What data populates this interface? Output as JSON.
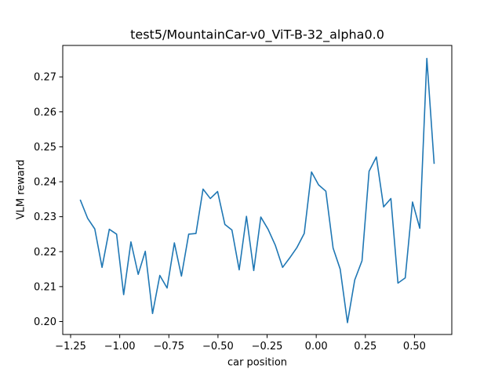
{
  "chart_data": {
    "type": "line",
    "title": "test5/MountainCar-v0_ViT-B-32_alpha0.0",
    "xlabel": "car position",
    "ylabel": "VLM reward",
    "xlim": [
      -1.29,
      0.69
    ],
    "ylim": [
      0.1963,
      0.279
    ],
    "xticks": [
      -1.25,
      -1.0,
      -0.75,
      -0.5,
      -0.25,
      0.0,
      0.25,
      0.5
    ],
    "xtick_labels": [
      "−1.25",
      "−1.00",
      "−0.75",
      "−0.50",
      "−0.25",
      "0.00",
      "0.25",
      "0.50"
    ],
    "yticks": [
      0.2,
      0.21,
      0.22,
      0.23,
      0.24,
      0.25,
      0.26,
      0.27
    ],
    "ytick_labels": [
      "0.20",
      "0.21",
      "0.22",
      "0.23",
      "0.24",
      "0.25",
      "0.26",
      "0.27"
    ],
    "grid": false,
    "line_color": "#1f77b4",
    "series": [
      {
        "x": [
          -1.2,
          -1.163,
          -1.127,
          -1.09,
          -1.053,
          -1.016,
          -0.98,
          -0.943,
          -0.906,
          -0.87,
          -0.833,
          -0.796,
          -0.759,
          -0.722,
          -0.686,
          -0.649,
          -0.612,
          -0.576,
          -0.539,
          -0.502,
          -0.465,
          -0.429,
          -0.392,
          -0.355,
          -0.318,
          -0.282,
          -0.245,
          -0.208,
          -0.171,
          -0.135,
          -0.098,
          -0.061,
          -0.024,
          0.012,
          0.049,
          0.086,
          0.122,
          0.159,
          0.196,
          0.233,
          0.269,
          0.306,
          0.343,
          0.38,
          0.416,
          0.453,
          0.49,
          0.527,
          0.563,
          0.6
        ],
        "y": [
          0.2347,
          0.2295,
          0.2265,
          0.2155,
          0.2264,
          0.225,
          0.2077,
          0.2228,
          0.2135,
          0.2201,
          0.2023,
          0.2132,
          0.2096,
          0.2225,
          0.213,
          0.225,
          0.2252,
          0.2379,
          0.2352,
          0.2372,
          0.2278,
          0.2262,
          0.2148,
          0.2301,
          0.2146,
          0.2299,
          0.2264,
          0.2218,
          0.2155,
          0.2182,
          0.2212,
          0.2252,
          0.2428,
          0.2391,
          0.2373,
          0.221,
          0.215,
          0.1997,
          0.2119,
          0.2174,
          0.243,
          0.2471,
          0.2328,
          0.2352,
          0.211,
          0.2125,
          0.2342,
          0.2267,
          0.2753,
          0.2453
        ]
      }
    ]
  }
}
